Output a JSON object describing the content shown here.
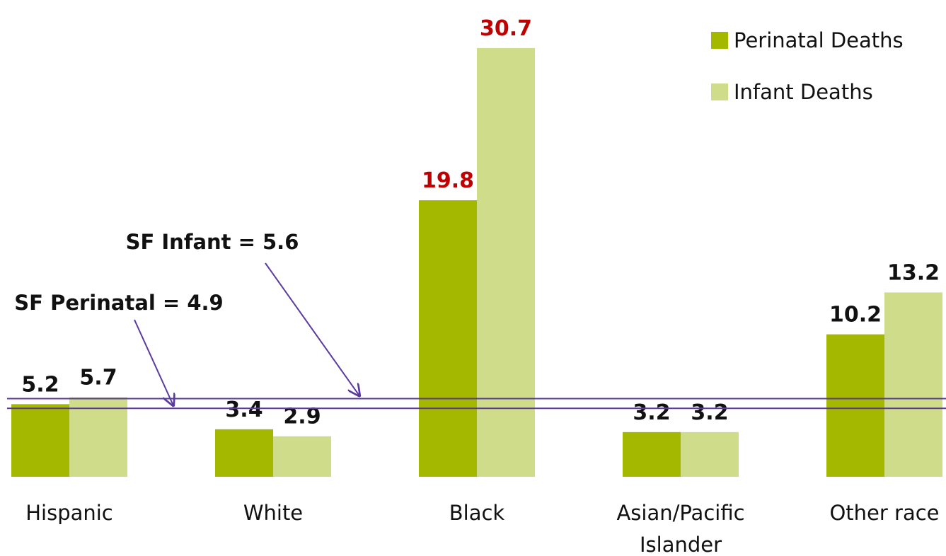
{
  "chart_data": {
    "type": "bar",
    "categories": [
      "Hispanic",
      "White",
      "Black",
      "Asian/Pacific Islander",
      "Other race"
    ],
    "series": [
      {
        "name": "Perinatal Deaths",
        "color": "#a5b800",
        "values": [
          5.2,
          3.4,
          19.8,
          3.2,
          10.2
        ],
        "value_label_colors": [
          "#111111",
          "#111111",
          "#c00000",
          "#111111",
          "#111111"
        ]
      },
      {
        "name": "Infant Deaths",
        "color": "#cfdc8a",
        "values": [
          5.7,
          2.9,
          30.7,
          3.2,
          13.2
        ],
        "value_label_colors": [
          "#111111",
          "#111111",
          "#c00000",
          "#111111",
          "#111111"
        ]
      }
    ],
    "reference_lines": [
      {
        "label": "SF Infant = 5.6",
        "value": 5.6,
        "color": "#5b3a9e"
      },
      {
        "label": "SF Perinatal = 4.9",
        "value": 4.9,
        "color": "#5b3a9e"
      }
    ],
    "ylim": [
      0,
      31
    ],
    "grid": false,
    "legend": "upper right"
  }
}
